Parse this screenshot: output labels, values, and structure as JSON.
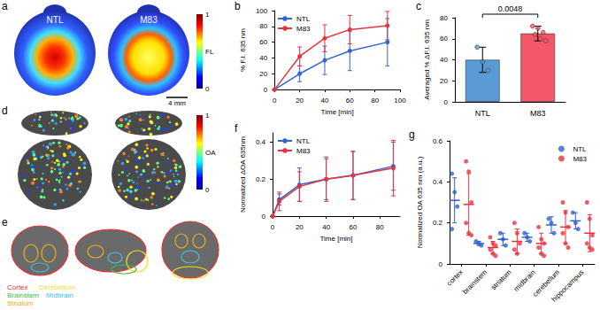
{
  "chart_data": [
    {
      "panel_label": "b",
      "type": "line",
      "x_label": "Time [min]",
      "y_label": "% F.I. 635 nm",
      "x": [
        0,
        20,
        40,
        60,
        90
      ],
      "series": [
        {
          "name": "NTL",
          "color": "#3366cc",
          "marker": "circle",
          "line_style": "solid",
          "values": [
            0,
            20,
            37,
            49,
            60
          ],
          "errors": [
            0,
            10,
            18,
            25,
            30
          ]
        },
        {
          "name": "M83",
          "color": "#e8333f",
          "marker": "circle",
          "line_style": "solid",
          "values": [
            0,
            42,
            65,
            76,
            81
          ],
          "errors": [
            0,
            12,
            17,
            18,
            18
          ]
        }
      ],
      "xlim": [
        0,
        100
      ],
      "xticks": [
        0,
        20,
        40,
        60,
        80,
        100
      ],
      "ylim": [
        0,
        100
      ],
      "yticks": [
        0,
        20,
        40,
        60,
        80,
        100
      ],
      "grid": false,
      "legend": "upper left"
    },
    {
      "panel_label": "c",
      "type": "bar",
      "y_label": "Averaged % ΔF.I. 635 nm",
      "categories": [
        "NTL",
        "M83"
      ],
      "values": [
        40,
        65
      ],
      "errors": [
        12,
        7
      ],
      "colors": [
        "#5b9bd5",
        "#f4566a"
      ],
      "points": [
        [
          52,
          38,
          30
        ],
        [
          72,
          70,
          66,
          64,
          60,
          58
        ]
      ],
      "annotation": "0.0048",
      "ylim": [
        0,
        80
      ],
      "yticks": [
        0,
        20,
        40,
        60,
        80
      ],
      "grid": false
    },
    {
      "panel_label": "f",
      "type": "line",
      "x_label": "Time [min]",
      "y_label": "Normalized ΔOA 635nm",
      "x": [
        0,
        5,
        20,
        40,
        60,
        90
      ],
      "series": [
        {
          "name": "NTL",
          "color": "#3366cc",
          "marker": "circle",
          "line_style": "solid",
          "values": [
            0,
            0.09,
            0.17,
            0.2,
            0.22,
            0.27
          ],
          "errors": [
            0,
            0.03,
            0.09,
            0.11,
            0.13,
            0.13
          ]
        },
        {
          "name": "M83",
          "color": "#e8333f",
          "marker": "circle",
          "line_style": "solid",
          "values": [
            0,
            0.08,
            0.16,
            0.2,
            0.22,
            0.26
          ],
          "errors": [
            0,
            0.05,
            0.08,
            0.12,
            0.13,
            0.15
          ]
        }
      ],
      "xlim": [
        0,
        95
      ],
      "xticks": [
        0,
        20,
        40,
        60,
        80
      ],
      "ylim": [
        0,
        0.45
      ],
      "yticks": [
        0,
        0.2,
        0.4
      ],
      "grid": false,
      "legend": "upper left"
    },
    {
      "panel_label": "g",
      "type": "scatter",
      "y_label": "Normalized OA 635 nm (a.u.)",
      "categories": [
        "cortex",
        "brainstem",
        "striatum",
        "midbrain",
        "cerebellum",
        "hippocampus"
      ],
      "series": [
        {
          "name": "NTL",
          "color": "#2f5fd0",
          "marker": "circle",
          "values": [
            [
              0.44,
              0.35,
              0.28,
              0.17
            ],
            [
              0.11,
              0.1,
              0.09
            ],
            [
              0.15,
              0.12,
              0.09
            ],
            [
              0.15,
              0.13,
              0.11
            ],
            [
              0.22,
              0.2,
              0.15
            ],
            [
              0.25,
              0.2,
              0.17
            ]
          ],
          "means": [
            0.31,
            0.1,
            0.12,
            0.13,
            0.19,
            0.21
          ],
          "errors": [
            0.11,
            0.01,
            0.03,
            0.02,
            0.04,
            0.04
          ]
        },
        {
          "name": "M83",
          "color": "#e8333f",
          "marker": "circle",
          "values": [
            [
              0.5,
              0.45,
              0.3,
              0.2,
              0.15,
              0.14
            ],
            [
              0.13,
              0.1,
              0.09,
              0.07,
              0.05,
              0.04
            ],
            [
              0.2,
              0.15,
              0.1,
              0.07,
              0.05
            ],
            [
              0.18,
              0.12,
              0.1,
              0.08,
              0.05,
              0.04
            ],
            [
              0.3,
              0.25,
              0.18,
              0.15,
              0.1,
              0.08
            ],
            [
              0.3,
              0.22,
              0.14,
              0.1,
              0.08,
              0.07
            ]
          ],
          "means": [
            0.29,
            0.08,
            0.11,
            0.1,
            0.18,
            0.15
          ],
          "errors": [
            0.15,
            0.03,
            0.06,
            0.05,
            0.08,
            0.09
          ]
        }
      ],
      "ylim": [
        0,
        0.6
      ],
      "yticks": [
        0,
        0.2,
        0.4,
        0.6
      ],
      "grid": false,
      "legend": "upper right"
    }
  ],
  "images": [
    {
      "panel_label": "a",
      "labels": [
        "NTL",
        "M83"
      ],
      "colorbar": {
        "title": "FL",
        "ticks": [
          0,
          1
        ]
      },
      "scale_bar": "4 mm"
    },
    {
      "panel_label": "d",
      "colorbar": {
        "title": "OA",
        "ticks": [
          0,
          1
        ]
      }
    },
    {
      "panel_label": "e",
      "regions": [
        {
          "name": "Cortex",
          "color": "#e83030"
        },
        {
          "name": "Cerebellum",
          "color": "#f0e020"
        },
        {
          "name": "Brainstem",
          "color": "#40c040"
        },
        {
          "name": "Midbrain",
          "color": "#40c0e0"
        },
        {
          "name": "Striatum",
          "color": "#e8b020"
        }
      ]
    }
  ]
}
